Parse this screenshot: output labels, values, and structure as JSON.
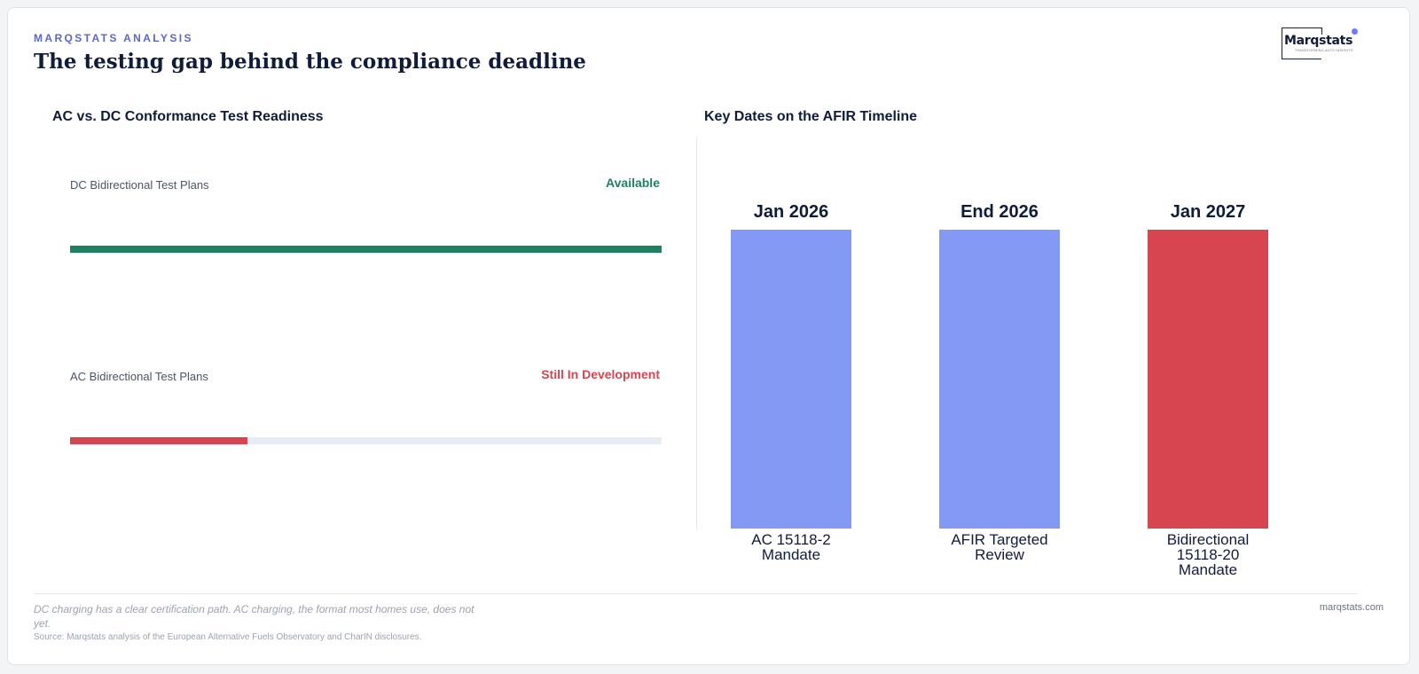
{
  "header": {
    "eyebrow": "MARQSTATS ANALYSIS",
    "title": "The testing gap behind the compliance deadline"
  },
  "logo": {
    "word": "Marqstats",
    "tagline": "TRANSFORMING AUTO INSIGHTS"
  },
  "colors": {
    "accent": "#5b67c9",
    "available": "#1e8260",
    "development": "#d64550",
    "bar_blue": "#8499f4",
    "bar_red": "#d64550",
    "track": "#e7edf5"
  },
  "chart_data": [
    {
      "type": "bar",
      "orientation": "horizontal",
      "title": "AC vs. DC Conformance Test Readiness",
      "categories": [
        "DC Bidirectional Test Plans",
        "AC Bidirectional Test Plans"
      ],
      "values": [
        1.0,
        0.3
      ],
      "status_labels": [
        "Available",
        "Still In Development"
      ],
      "xlim": [
        0,
        1
      ],
      "grid": false
    },
    {
      "type": "bar",
      "title": "Key Dates on the AFIR Timeline",
      "categories": [
        "AC 15118-2 Mandate",
        "AFIR Targeted Review",
        "Bidirectional 15118-20 Mandate"
      ],
      "category_lines": [
        [
          "AC 15118-2",
          "Mandate"
        ],
        [
          "AFIR Targeted",
          "Review"
        ],
        [
          "Bidirectional",
          "15118-20",
          "Mandate"
        ]
      ],
      "values": [
        1,
        1,
        1
      ],
      "data_labels": [
        "Jan 2026",
        "End 2026",
        "Jan 2027"
      ],
      "highlight_index": 2,
      "grid": false
    }
  ],
  "footer": {
    "note": "DC charging has a clear certification path. AC charging, the format most homes use, does not yet.",
    "source": "Source: Marqstats analysis of the European Alternative Fuels Observatory and CharIN disclosures.",
    "url": "marqstats.com"
  }
}
